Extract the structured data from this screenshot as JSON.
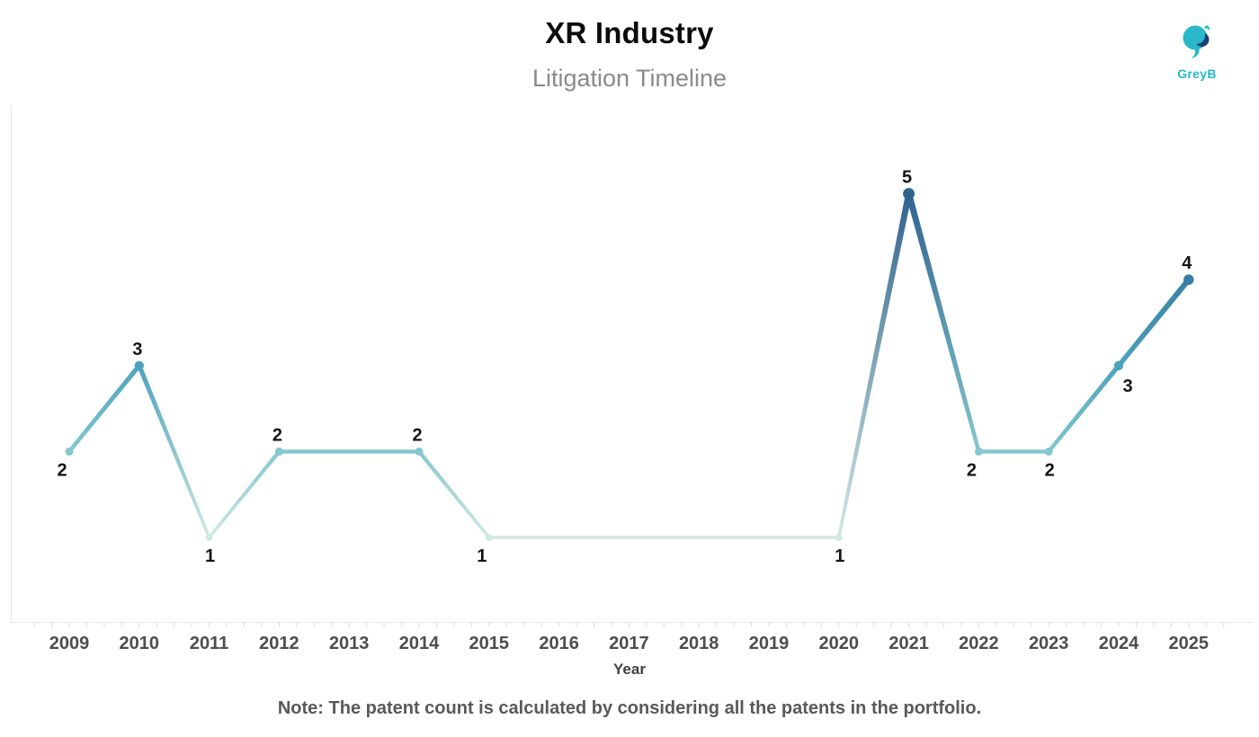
{
  "header": {
    "title": "XR Industry",
    "subtitle": "Litigation Timeline"
  },
  "logo": {
    "text": "GreyB",
    "teal": "#29b7c9",
    "navy": "#1d3d78"
  },
  "axis": {
    "xlabel": "Year"
  },
  "note": "Note: The patent count is calculated by considering all the patents in the portfolio.",
  "chart_data": {
    "type": "line",
    "title": "XR Industry",
    "subtitle": "Litigation Timeline",
    "xlabel": "Year",
    "ylabel": "",
    "grid": false,
    "legend": "none",
    "ylim": [
      1,
      5
    ],
    "x_ticks": [
      "2009",
      "2010",
      "2011",
      "2012",
      "2013",
      "2014",
      "2015",
      "2016",
      "2017",
      "2018",
      "2019",
      "2020",
      "2021",
      "2022",
      "2023",
      "2024",
      "2025"
    ],
    "points": [
      {
        "year": 2009,
        "value": 2,
        "label": "2",
        "label_pos": "below-left"
      },
      {
        "year": 2010,
        "value": 3,
        "label": "3",
        "label_pos": "above"
      },
      {
        "year": 2011,
        "value": 1,
        "label": "1",
        "label_pos": "below"
      },
      {
        "year": 2012,
        "value": 2,
        "label": "2",
        "label_pos": "above"
      },
      {
        "year": 2014,
        "value": 2,
        "label": "2",
        "label_pos": "above"
      },
      {
        "year": 2015,
        "value": 1,
        "label": "1",
        "label_pos": "below-left"
      },
      {
        "year": 2020,
        "value": 1,
        "label": "1",
        "label_pos": "below"
      },
      {
        "year": 2021,
        "value": 5,
        "label": "5",
        "label_pos": "above"
      },
      {
        "year": 2022,
        "value": 2,
        "label": "2",
        "label_pos": "below-left"
      },
      {
        "year": 2023,
        "value": 2,
        "label": "2",
        "label_pos": "below"
      },
      {
        "year": 2024,
        "value": 3,
        "label": "3",
        "label_pos": "below-right"
      },
      {
        "year": 2025,
        "value": 4,
        "label": "4",
        "label_pos": "above"
      }
    ],
    "value_color_map": {
      "1": "#cfe8e2",
      "2": "#84c7cf",
      "3": "#4da3bc",
      "4": "#3a7fa5",
      "5": "#31638f"
    }
  }
}
